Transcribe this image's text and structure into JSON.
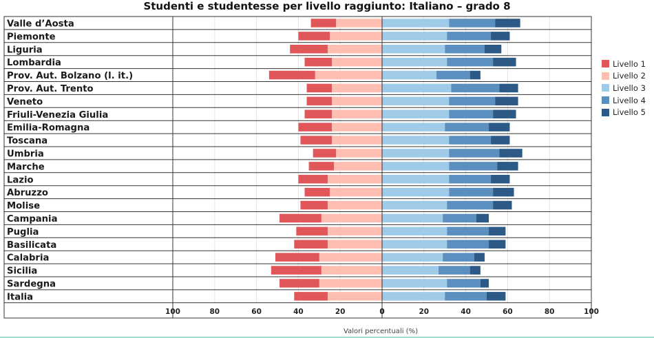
{
  "chart_data": {
    "type": "bar",
    "stacked": true,
    "diverging": true,
    "orientation": "horizontal",
    "title": "Studenti e studentesse per livello raggiunto: Italiano – grado 8",
    "xlabel": "Valori percentuali (%)",
    "ylabel": "",
    "xlim_left": [
      100,
      0
    ],
    "xlim_right": [
      0,
      100
    ],
    "x_ticks_left": [
      "100",
      "80",
      "60",
      "40",
      "20",
      "0"
    ],
    "x_ticks_right": [
      "0",
      "20",
      "40",
      "60",
      "80",
      "100"
    ],
    "grid": true,
    "legend_position": "right",
    "categories": [
      "Valle d’Aosta",
      "Piemonte",
      "Liguria",
      "Lombardia",
      "Prov. Aut. Bolzano (l. it.)",
      "Prov. Aut. Trento",
      "Veneto",
      "Friuli-Venezia Giulia",
      "Emilia-Romagna",
      "Toscana",
      "Umbria",
      "Marche",
      "Lazio",
      "Abruzzo",
      "Molise",
      "Campania",
      "Puglia",
      "Basilicata",
      "Calabria",
      "Sicilia",
      "Sardegna",
      "Italia"
    ],
    "series": [
      {
        "name": "Livello 1",
        "color": "#e15759",
        "side": "left",
        "values": [
          12,
          15,
          18,
          13,
          22,
          12,
          12,
          13,
          16,
          15,
          11,
          12,
          14,
          12,
          13,
          20,
          15,
          16,
          21,
          24,
          19,
          16
        ]
      },
      {
        "name": "Livello 2",
        "color": "#ffbeb2",
        "side": "left",
        "values": [
          22,
          25,
          26,
          24,
          32,
          24,
          24,
          24,
          24,
          24,
          22,
          23,
          26,
          25,
          26,
          29,
          26,
          26,
          30,
          29,
          30,
          26
        ]
      },
      {
        "name": "Livello 3",
        "color": "#a0cbe8",
        "side": "right",
        "values": [
          32,
          31,
          30,
          31,
          26,
          33,
          32,
          32,
          30,
          32,
          32,
          32,
          32,
          32,
          31,
          29,
          31,
          31,
          29,
          27,
          31,
          30
        ]
      },
      {
        "name": "Livello 4",
        "color": "#5b8fbf",
        "side": "right",
        "values": [
          22,
          21,
          19,
          22,
          16,
          23,
          22,
          21,
          21,
          20,
          24,
          23,
          20,
          21,
          22,
          16,
          20,
          20,
          15,
          15,
          16,
          20
        ]
      },
      {
        "name": "Livello 5",
        "color": "#2c5985",
        "side": "right",
        "values": [
          12,
          9,
          8,
          11,
          5,
          9,
          11,
          11,
          10,
          9,
          11,
          10,
          9,
          10,
          9,
          6,
          8,
          8,
          5,
          5,
          4,
          9
        ]
      }
    ]
  }
}
